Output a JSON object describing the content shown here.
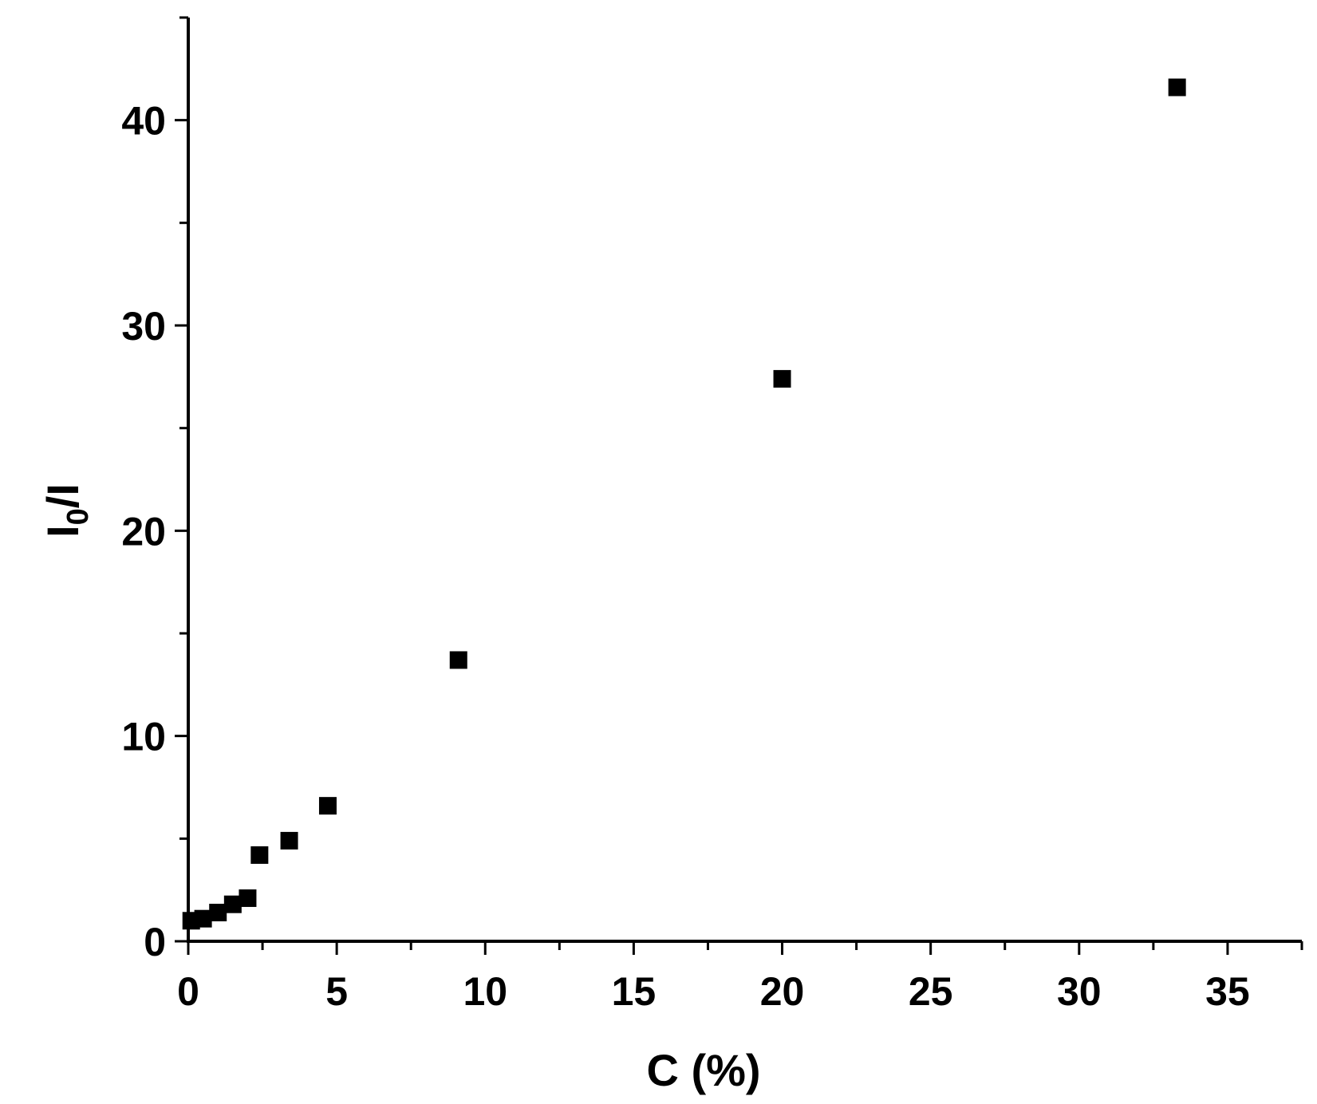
{
  "colors": {
    "axis": "#000000",
    "marker": "#000000",
    "background": "#ffffff"
  },
  "chart_data": {
    "type": "scatter",
    "title": "",
    "xlabel": "C (%)",
    "ylabel": {
      "main": "I",
      "sub": "0",
      "tail": "/I"
    },
    "xlim": [
      0,
      37.5
    ],
    "ylim": [
      0,
      45
    ],
    "x_ticks": [
      "0",
      "5",
      "10",
      "15",
      "20",
      "25",
      "30",
      "35"
    ],
    "y_ticks": [
      "0",
      "10",
      "20",
      "30",
      "40"
    ],
    "x_major_step": 5,
    "x_minor_step": 2.5,
    "y_major_step": 10,
    "y_minor_step": 5,
    "grid": false,
    "marker": "square",
    "series": [
      {
        "points": [
          {
            "x": 0.1,
            "y": 1.0
          },
          {
            "x": 0.5,
            "y": 1.1
          },
          {
            "x": 1.0,
            "y": 1.4
          },
          {
            "x": 1.5,
            "y": 1.8
          },
          {
            "x": 2.0,
            "y": 2.1
          },
          {
            "x": 2.4,
            "y": 4.2
          },
          {
            "x": 3.4,
            "y": 4.9
          },
          {
            "x": 4.7,
            "y": 6.6
          },
          {
            "x": 9.1,
            "y": 13.7
          },
          {
            "x": 20.0,
            "y": 27.4
          },
          {
            "x": 33.3,
            "y": 41.6
          }
        ]
      }
    ]
  }
}
